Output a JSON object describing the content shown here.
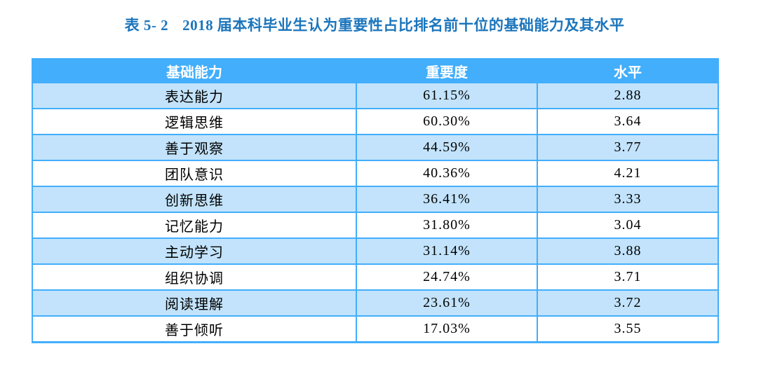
{
  "title": {
    "label": "表 5- 2",
    "text": "2018 届本科毕业生认为重要性占比排名前十位的基础能力及其水平",
    "color": "#1B75BC"
  },
  "table": {
    "columns": [
      "基础能力",
      "重要度",
      "水平"
    ],
    "rows": [
      {
        "ability": "表达能力",
        "importance": "61.15%",
        "level": "2.88"
      },
      {
        "ability": "逻辑思维",
        "importance": "60.30%",
        "level": "3.64"
      },
      {
        "ability": "善于观察",
        "importance": "44.59%",
        "level": "3.77"
      },
      {
        "ability": "团队意识",
        "importance": "40.36%",
        "level": "4.21"
      },
      {
        "ability": "创新思维",
        "importance": "36.41%",
        "level": "3.33"
      },
      {
        "ability": "记忆能力",
        "importance": "31.80%",
        "level": "3.04"
      },
      {
        "ability": "主动学习",
        "importance": "31.14%",
        "level": "3.88"
      },
      {
        "ability": "组织协调",
        "importance": "24.74%",
        "level": "3.71"
      },
      {
        "ability": "阅读理解",
        "importance": "23.61%",
        "level": "3.72"
      },
      {
        "ability": "善于倾听",
        "importance": "17.03%",
        "level": "3.55"
      }
    ],
    "colors": {
      "header_bg": "#42AEFC",
      "header_text": "#FFFFFF",
      "border": "#42AEFC",
      "row_stripe_bg": "#C2E3FB",
      "row_plain_bg": "#FFFFFF",
      "cell_text": "#000000"
    }
  },
  "chart_data": {
    "type": "table",
    "title": "表 5- 2 2018 届本科毕业生认为重要性占比排名前十位的基础能力及其水平",
    "columns": [
      "基础能力",
      "重要度",
      "水平"
    ],
    "rows": [
      [
        "表达能力",
        "61.15%",
        "2.88"
      ],
      [
        "逻辑思维",
        "60.30%",
        "3.64"
      ],
      [
        "善于观察",
        "44.59%",
        "3.77"
      ],
      [
        "团队意识",
        "40.36%",
        "4.21"
      ],
      [
        "创新思维",
        "36.41%",
        "3.33"
      ],
      [
        "记忆能力",
        "31.80%",
        "3.04"
      ],
      [
        "主动学习",
        "31.14%",
        "3.88"
      ],
      [
        "组织协调",
        "24.74%",
        "3.71"
      ],
      [
        "阅读理解",
        "23.61%",
        "3.72"
      ],
      [
        "善于倾听",
        "17.03%",
        "3.55"
      ]
    ]
  }
}
